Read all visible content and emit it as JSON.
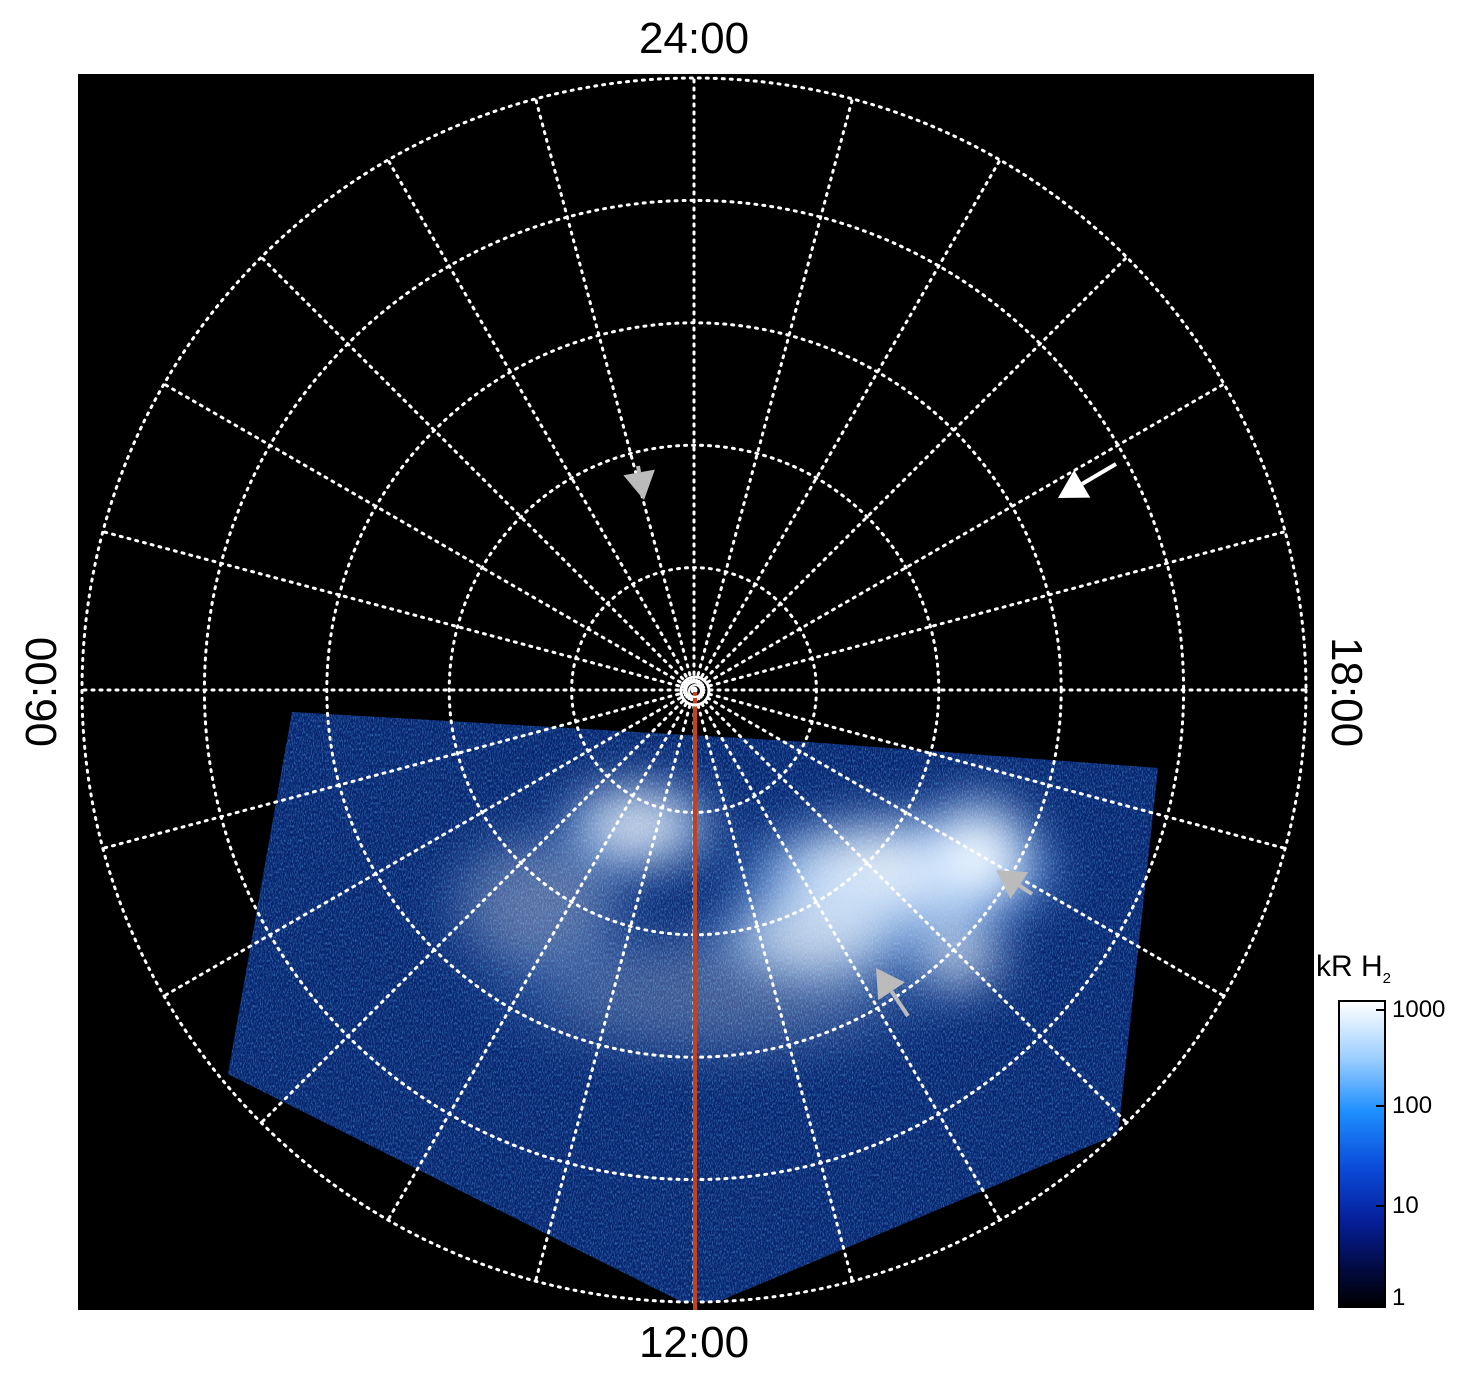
{
  "chart_data": {
    "type": "heatmap",
    "projection": "polar",
    "title": "",
    "local_time_labels": {
      "top": "24:00",
      "right": "18:00",
      "bottom": "12:00",
      "left": "06:00"
    },
    "background": "#000000",
    "grid": {
      "shown": true,
      "style": "dotted",
      "color": "#ffffff",
      "rings": 5,
      "meridian_spacing_deg": 15
    },
    "colorbar": {
      "label": "kR H",
      "label_subscript": "2",
      "scale": "log",
      "range": [
        1,
        1000
      ],
      "ticks": [
        "1000",
        "100",
        "10",
        "1"
      ],
      "colors": [
        "#000000",
        "#061f9a",
        "#1e8fff",
        "#ffffff"
      ]
    },
    "emission": {
      "coverage": "partial swath on the 06:00–12:00–18:00 side of the pole",
      "bright_region": "arc crossing the 12:00 meridian, brightest toward 14:00–17:00 local time",
      "peak_color": "#ffffff",
      "noise_color": "#1e6be0"
    },
    "reference_line": {
      "color": "#c8401a",
      "local_time": "12:00"
    },
    "annotations": [
      {
        "kind": "arrow",
        "color": "#ffffff"
      },
      {
        "kind": "arrow",
        "color": "#bbbbbb"
      },
      {
        "kind": "arrow",
        "color": "#bbbbbb"
      },
      {
        "kind": "arrow",
        "color": "#bbbbbb"
      }
    ],
    "pole_marker": {
      "shape": "concentric circles",
      "color": "#ffffff"
    }
  }
}
